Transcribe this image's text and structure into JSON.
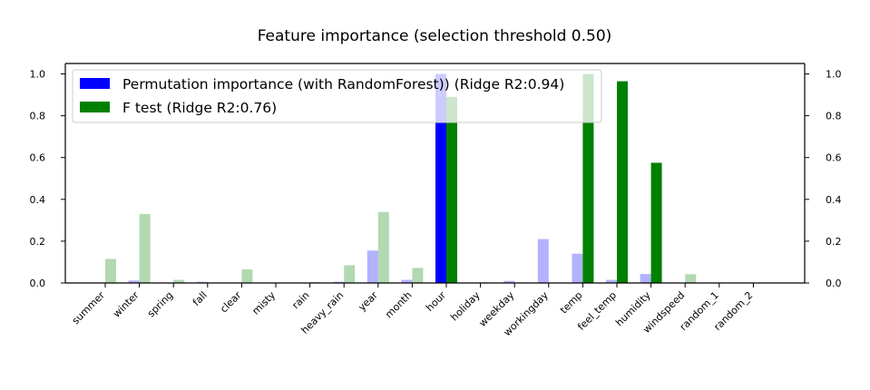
{
  "chart_data": {
    "type": "bar",
    "title": "Feature importance (selection threshold 0.50)",
    "xlabel": "",
    "ylabel": "",
    "ylim": [
      0,
      1.05
    ],
    "yticks": [
      "0.0",
      "0.2",
      "0.4",
      "0.6",
      "0.8",
      "1.0"
    ],
    "ytick_values": [
      0,
      0.2,
      0.4,
      0.6,
      0.8,
      1.0
    ],
    "threshold": 0.5,
    "grid": false,
    "legend_position": "top-left",
    "categories": [
      "summer",
      "winter",
      "spring",
      "fall",
      "clear",
      "misty",
      "rain",
      "heavy_rain",
      "year",
      "month",
      "hour",
      "holiday",
      "weekday",
      "workingday",
      "temp",
      "feel_temp",
      "humidity",
      "windspeed",
      "random_1",
      "random_2"
    ],
    "series": [
      {
        "name": "Permutation importance (with RandomForest)) (Ridge R2:0.94)",
        "color": "#0000ff",
        "values": [
          0.001,
          0.012,
          0.0,
          0.006,
          0.0,
          0.0,
          0.0,
          0.006,
          0.155,
          0.015,
          1.0,
          0.0,
          0.01,
          0.21,
          0.14,
          0.015,
          0.043,
          0.0,
          0.0,
          0.0
        ]
      },
      {
        "name": "F test (Ridge R2:0.76)",
        "color": "#008000",
        "values": [
          0.115,
          0.33,
          0.015,
          0.002,
          0.065,
          0.0,
          0.004,
          0.085,
          0.34,
          0.072,
          0.89,
          0.003,
          0.003,
          0.0,
          1.0,
          0.965,
          0.575,
          0.042,
          0.0,
          0.0
        ]
      }
    ]
  }
}
